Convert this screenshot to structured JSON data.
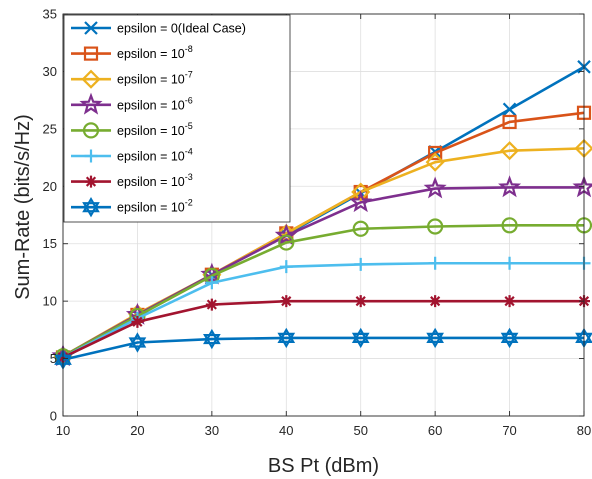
{
  "chart_data": {
    "type": "line",
    "title": "",
    "xlabel": "BS Pt (dBm)",
    "ylabel": "Sum-Rate (bits/s/Hz)",
    "x": [
      10,
      20,
      30,
      40,
      50,
      60,
      70,
      80
    ],
    "xlim": [
      10,
      80
    ],
    "ylim": [
      0,
      35
    ],
    "xticks": [
      "10",
      "20",
      "30",
      "40",
      "50",
      "60",
      "70",
      "80"
    ],
    "yticks": [
      "0",
      "5",
      "10",
      "15",
      "20",
      "25",
      "30",
      "35"
    ],
    "grid": true,
    "legend_position": "top-left",
    "series": [
      {
        "name": "epsilon = 0(Ideal Case)",
        "label_base": "epsilon = 0(Ideal Case)",
        "label_exp": "",
        "color": "#0072BD",
        "marker": "x",
        "values": [
          5.0,
          8.8,
          12.3,
          15.8,
          19.4,
          23.0,
          26.7,
          30.4
        ]
      },
      {
        "name": "epsilon = 10^-8",
        "label_base": "epsilon = 10",
        "label_exp": "-8",
        "color": "#D95319",
        "marker": "square",
        "values": [
          5.1,
          8.8,
          12.3,
          15.9,
          19.5,
          22.9,
          25.6,
          26.4
        ]
      },
      {
        "name": "epsilon = 10^-7",
        "label_base": "epsilon = 10",
        "label_exp": "-7",
        "color": "#EDB120",
        "marker": "diamond",
        "values": [
          5.2,
          8.9,
          12.3,
          15.9,
          19.5,
          22.1,
          23.1,
          23.3
        ]
      },
      {
        "name": "epsilon = 10^-6",
        "label_base": "epsilon = 10",
        "label_exp": "-6",
        "color": "#7E2F8E",
        "marker": "pentagram",
        "values": [
          5.2,
          8.8,
          12.3,
          15.7,
          18.6,
          19.8,
          19.9,
          19.9
        ]
      },
      {
        "name": "epsilon = 10^-5",
        "label_base": "epsilon = 10",
        "label_exp": "-5",
        "color": "#77AC30",
        "marker": "circle",
        "values": [
          5.2,
          8.7,
          12.2,
          15.1,
          16.3,
          16.5,
          16.6,
          16.6
        ]
      },
      {
        "name": "epsilon = 10^-4",
        "label_base": "epsilon = 10",
        "label_exp": "-4",
        "color": "#4DBEEE",
        "marker": "plus",
        "values": [
          5.1,
          8.5,
          11.6,
          13.0,
          13.2,
          13.3,
          13.3,
          13.3
        ]
      },
      {
        "name": "epsilon = 10^-3",
        "label_base": "epsilon = 10",
        "label_exp": "-3",
        "color": "#A2142F",
        "marker": "asterisk",
        "values": [
          5.1,
          8.2,
          9.7,
          10.0,
          10.0,
          10.0,
          10.0,
          10.0
        ]
      },
      {
        "name": "epsilon = 10^-2",
        "label_base": "epsilon = 10",
        "label_exp": "-2",
        "color": "#0072BD",
        "marker": "hexagram",
        "values": [
          4.9,
          6.4,
          6.7,
          6.8,
          6.8,
          6.8,
          6.8,
          6.8
        ]
      }
    ]
  }
}
